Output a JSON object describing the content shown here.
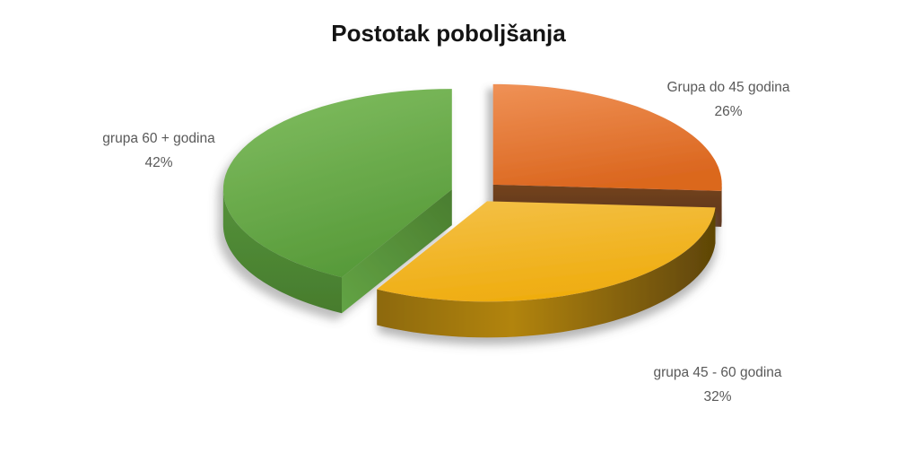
{
  "title": "Postotak poboljšanja",
  "chart_data": {
    "type": "pie",
    "title": "Postotak poboljšanja",
    "is_3d": true,
    "exploded": true,
    "start_angle_deg": 0,
    "direction": "clockwise",
    "legend": "none",
    "background": "#FFFFFF",
    "label_color": "#595959",
    "title_color": "#141414",
    "slices": [
      {
        "label": "Grupa do 45 godina",
        "value": 26,
        "pct_text": "26%",
        "color": "#E2752E",
        "side_color": "#66391D"
      },
      {
        "label": "grupa 45 - 60 godina",
        "value": 32,
        "pct_text": "32%",
        "color": "#F1B41C",
        "side_color": "#8A670D"
      },
      {
        "label": "grupa 60 + godina",
        "value": 42,
        "pct_text": "42%",
        "color": "#69AC4A",
        "side_color": "#4E8632"
      }
    ]
  }
}
